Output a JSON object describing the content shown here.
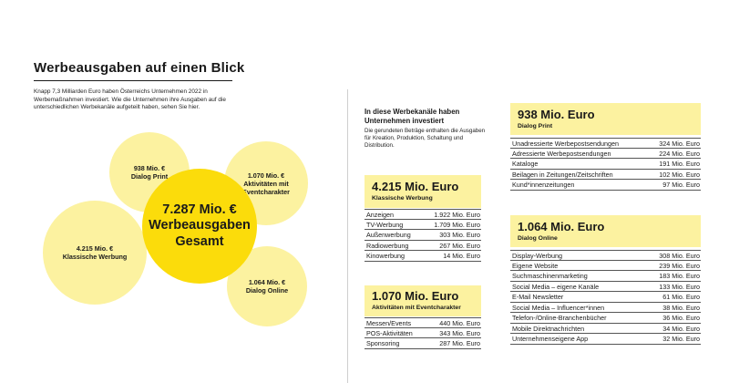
{
  "page": {
    "title": "Werbeausgaben auf einen Blick",
    "intro": "Knapp 7,3 Milliarden Euro haben Österreichs Unternehmen 2022 in Werbemaßnahmen investiert. Wie die Unternehmen ihre Ausgaben auf die unterschiedlichen Werbekanäle aufgeteilt haben, sehen Sie hier."
  },
  "bubbles": {
    "total": {
      "amount": "7.287 Mio. €",
      "line1": "Werbeausgaben",
      "line2": "Gesamt"
    },
    "dialog_print": {
      "amount": "938 Mio. €",
      "label": "Dialog Print"
    },
    "events": {
      "amount": "1.070 Mio. €",
      "label1": "Aktivitäten mit",
      "label2": "Eventcharakter"
    },
    "classic": {
      "amount": "4.215 Mio. €",
      "label": "Klassische Werbung"
    },
    "dialog_online": {
      "amount": "1.064 Mio. €",
      "label": "Dialog Online"
    }
  },
  "channels": {
    "heading": "In diese Werbekanäle haben Unternehmen investiert",
    "note": "Die gerundeten Beträge enthalten die Ausgaben für Kreation, Produktion, Schaltung und Distribution."
  },
  "cards": {
    "classic": {
      "amount": "4.215 Mio. Euro",
      "category": "Klassische Werbung",
      "rows": [
        {
          "label": "Anzeigen",
          "value": "1.922 Mio. Euro"
        },
        {
          "label": "TV-Werbung",
          "value": "1.709 Mio. Euro"
        },
        {
          "label": "Außenwerbung",
          "value": "303 Mio. Euro"
        },
        {
          "label": "Radiowerbung",
          "value": "267 Mio. Euro"
        },
        {
          "label": "Kinowerbung",
          "value": "14 Mio. Euro"
        }
      ]
    },
    "events": {
      "amount": "1.070 Mio. Euro",
      "category": "Aktivitäten mit Eventcharakter",
      "rows": [
        {
          "label": "Messen/Events",
          "value": "440 Mio. Euro"
        },
        {
          "label": "POS-Aktivitäten",
          "value": "343 Mio. Euro"
        },
        {
          "label": "Sponsoring",
          "value": "287 Mio. Euro"
        }
      ]
    },
    "dialog_print": {
      "amount": "938 Mio. Euro",
      "category": "Dialog Print",
      "rows": [
        {
          "label": "Unadressierte Werbepostsendungen",
          "value": "324 Mio. Euro"
        },
        {
          "label": "Adressierte Werbepostsendungen",
          "value": "224 Mio. Euro"
        },
        {
          "label": "Kataloge",
          "value": "191 Mio. Euro"
        },
        {
          "label": "Beilagen in Zeitungen/Zeitschriften",
          "value": "102 Mio. Euro"
        },
        {
          "label": "Kund*innenzeitungen",
          "value": "97 Mio. Euro"
        }
      ]
    },
    "dialog_online": {
      "amount": "1.064 Mio. Euro",
      "category": "Dialog Online",
      "rows": [
        {
          "label": "Display-Werbung",
          "value": "308 Mio. Euro"
        },
        {
          "label": "Eigene Website",
          "value": "239 Mio. Euro"
        },
        {
          "label": "Suchmaschinenmarketing",
          "value": "183 Mio. Euro"
        },
        {
          "label": "Social Media – eigene Kanäle",
          "value": "133 Mio. Euro"
        },
        {
          "label": "E-Mail Newsletter",
          "value": "61 Mio. Euro"
        },
        {
          "label": "Social Media – Influencer*innen",
          "value": "38 Mio. Euro"
        },
        {
          "label": "Telefon-/Online-Branchenbücher",
          "value": "36 Mio. Euro"
        },
        {
          "label": "Mobile Direktnachrichten",
          "value": "34 Mio. Euro"
        },
        {
          "label": "Unternehmenseigene App",
          "value": "32 Mio. Euro"
        }
      ]
    }
  },
  "colors": {
    "accent": "#fbdc0b",
    "light": "#fcf2a0"
  }
}
